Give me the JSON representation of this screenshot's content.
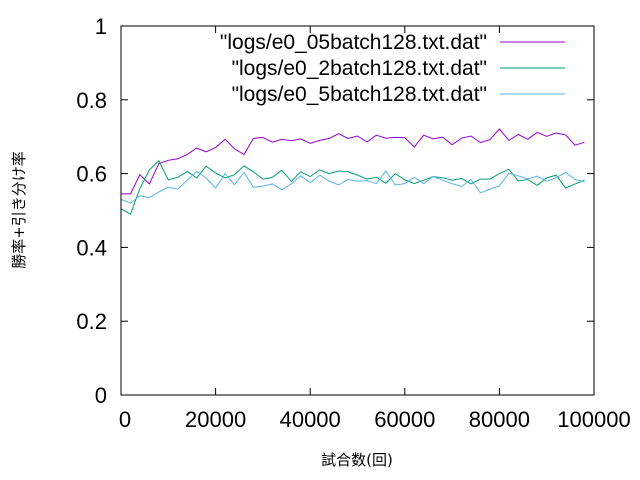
{
  "chart_data": {
    "type": "line",
    "xlabel": "試合数(回)",
    "ylabel": "勝率+引き分け率",
    "xlim": [
      0,
      100000
    ],
    "ylim": [
      0,
      1
    ],
    "xticks": [
      "0",
      "20000",
      "40000",
      "60000",
      "80000",
      "100000"
    ],
    "yticks": [
      "0",
      "0.2",
      "0.4",
      "0.6",
      "0.8",
      "1"
    ],
    "grid": false,
    "legend_position": "top-right",
    "series": [
      {
        "name": "\"logs/e0_05batch128.txt.dat\"",
        "color": "#9400d3",
        "x": [
          0,
          2000,
          4000,
          6000,
          8000,
          10000,
          12000,
          14000,
          16000,
          18000,
          20000,
          22000,
          24000,
          26000,
          28000,
          30000,
          32000,
          34000,
          36000,
          38000,
          40000,
          42000,
          44000,
          46000,
          48000,
          50000,
          52000,
          54000,
          56000,
          58000,
          60000,
          62000,
          64000,
          66000,
          68000,
          70000,
          72000,
          74000,
          76000,
          78000,
          80000,
          82000,
          84000,
          86000,
          88000,
          90000,
          92000,
          94000,
          96000,
          98000
        ],
        "y": [
          0.545,
          0.545,
          0.597,
          0.572,
          0.627,
          0.636,
          0.64,
          0.652,
          0.669,
          0.659,
          0.671,
          0.693,
          0.667,
          0.652,
          0.695,
          0.698,
          0.685,
          0.693,
          0.689,
          0.694,
          0.682,
          0.69,
          0.695,
          0.708,
          0.695,
          0.702,
          0.686,
          0.704,
          0.696,
          0.698,
          0.697,
          0.672,
          0.704,
          0.694,
          0.699,
          0.678,
          0.696,
          0.702,
          0.684,
          0.692,
          0.721,
          0.69,
          0.706,
          0.693,
          0.712,
          0.701,
          0.71,
          0.705,
          0.677,
          0.685
        ]
      },
      {
        "name": "\"logs/e0_2batch128.txt.dat\"",
        "color": "#009e73",
        "x": [
          0,
          2000,
          4000,
          6000,
          8000,
          10000,
          12000,
          14000,
          16000,
          18000,
          20000,
          22000,
          24000,
          26000,
          28000,
          30000,
          32000,
          34000,
          36000,
          38000,
          40000,
          42000,
          44000,
          46000,
          48000,
          50000,
          52000,
          54000,
          56000,
          58000,
          60000,
          62000,
          64000,
          66000,
          68000,
          70000,
          72000,
          74000,
          76000,
          78000,
          80000,
          82000,
          84000,
          86000,
          88000,
          90000,
          92000,
          94000,
          96000,
          98000
        ],
        "y": [
          0.505,
          0.49,
          0.56,
          0.61,
          0.635,
          0.583,
          0.59,
          0.606,
          0.588,
          0.62,
          0.602,
          0.588,
          0.597,
          0.621,
          0.605,
          0.585,
          0.59,
          0.609,
          0.579,
          0.605,
          0.592,
          0.61,
          0.6,
          0.607,
          0.605,
          0.596,
          0.585,
          0.59,
          0.574,
          0.6,
          0.583,
          0.573,
          0.582,
          0.592,
          0.589,
          0.582,
          0.587,
          0.572,
          0.585,
          0.585,
          0.6,
          0.612,
          0.58,
          0.584,
          0.568,
          0.588,
          0.596,
          0.561,
          0.572,
          0.582
        ]
      },
      {
        "name": "\"logs/e0_5batch128.txt.dat\"",
        "color": "#56b4e9",
        "x": [
          0,
          2000,
          4000,
          6000,
          8000,
          10000,
          12000,
          14000,
          16000,
          18000,
          20000,
          22000,
          24000,
          26000,
          28000,
          30000,
          32000,
          34000,
          36000,
          38000,
          40000,
          42000,
          44000,
          46000,
          48000,
          50000,
          52000,
          54000,
          56000,
          58000,
          60000,
          62000,
          64000,
          66000,
          68000,
          70000,
          72000,
          74000,
          76000,
          78000,
          80000,
          82000,
          84000,
          86000,
          88000,
          90000,
          92000,
          94000,
          96000,
          98000
        ],
        "y": [
          0.53,
          0.52,
          0.54,
          0.535,
          0.55,
          0.563,
          0.558,
          0.582,
          0.606,
          0.588,
          0.561,
          0.6,
          0.57,
          0.603,
          0.563,
          0.566,
          0.572,
          0.556,
          0.572,
          0.594,
          0.575,
          0.596,
          0.58,
          0.569,
          0.584,
          0.579,
          0.581,
          0.573,
          0.607,
          0.569,
          0.573,
          0.59,
          0.573,
          0.592,
          0.582,
          0.573,
          0.565,
          0.584,
          0.548,
          0.558,
          0.567,
          0.601,
          0.594,
          0.586,
          0.593,
          0.579,
          0.589,
          0.603,
          0.584,
          0.578
        ]
      }
    ]
  }
}
